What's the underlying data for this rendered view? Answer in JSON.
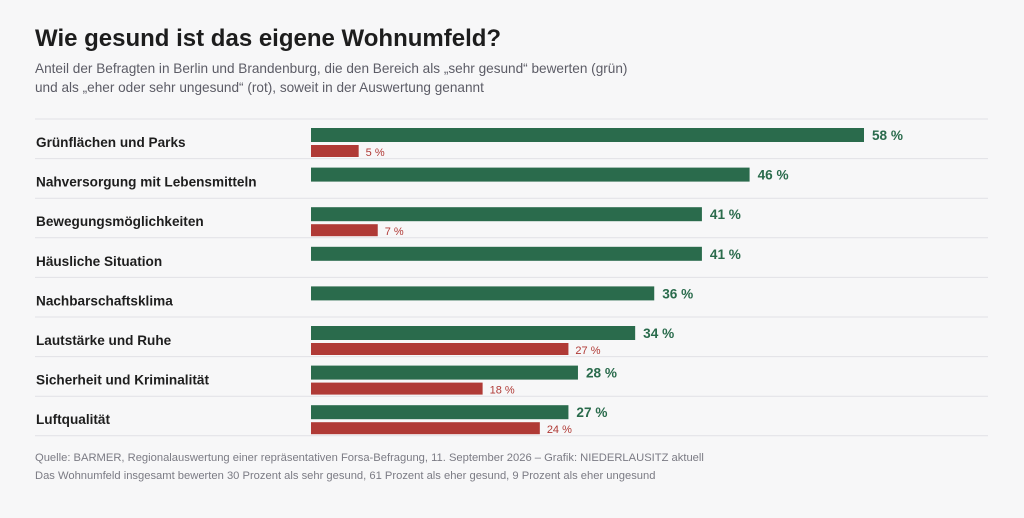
{
  "title": "Wie gesund ist das eigene Wohnumfeld?",
  "subtitle_line1": "Anteil der Befragten in Berlin und Brandenburg, die den Bereich als „sehr gesund“ bewerten (grün)",
  "subtitle_line2": "und als „eher oder sehr ungesund“ (rot), soweit in der Auswertung genannt",
  "source_line1": "Quelle: BARMER, Regionalauswertung einer repräsentativen Forsa-Befragung, 11. September 2026 – Grafik: NIEDERLAUSITZ aktuell",
  "source_line2": "Das Wohnumfeld insgesamt bewerten 30 Prozent als sehr gesund, 61 Prozent als eher gesund, 9 Prozent als eher ungesund",
  "colors": {
    "healthy": "#2a6b4c",
    "unhealthy": "#b03a36",
    "grid": "#e1e1e6"
  },
  "chart_data": {
    "type": "bar",
    "orientation": "horizontal",
    "unit": "%",
    "categories": [
      "Grünflächen und Parks",
      "Nahversorgung mit Lebensmitteln",
      "Bewegungsmöglichkeiten",
      "Häusliche Situation",
      "Nachbarschaftsklima",
      "Lautstärke und Ruhe",
      "Sicherheit und Kriminalität",
      "Luftqualität"
    ],
    "series": [
      {
        "key": "sehr_gesund",
        "color": "#2a6b4c",
        "values": [
          58,
          46,
          41,
          41,
          36,
          34,
          28,
          27
        ]
      },
      {
        "key": "ungesund",
        "color": "#b03a36",
        "values": [
          5,
          null,
          7,
          null,
          null,
          27,
          18,
          24
        ]
      }
    ],
    "xlim": [
      0,
      58
    ]
  }
}
